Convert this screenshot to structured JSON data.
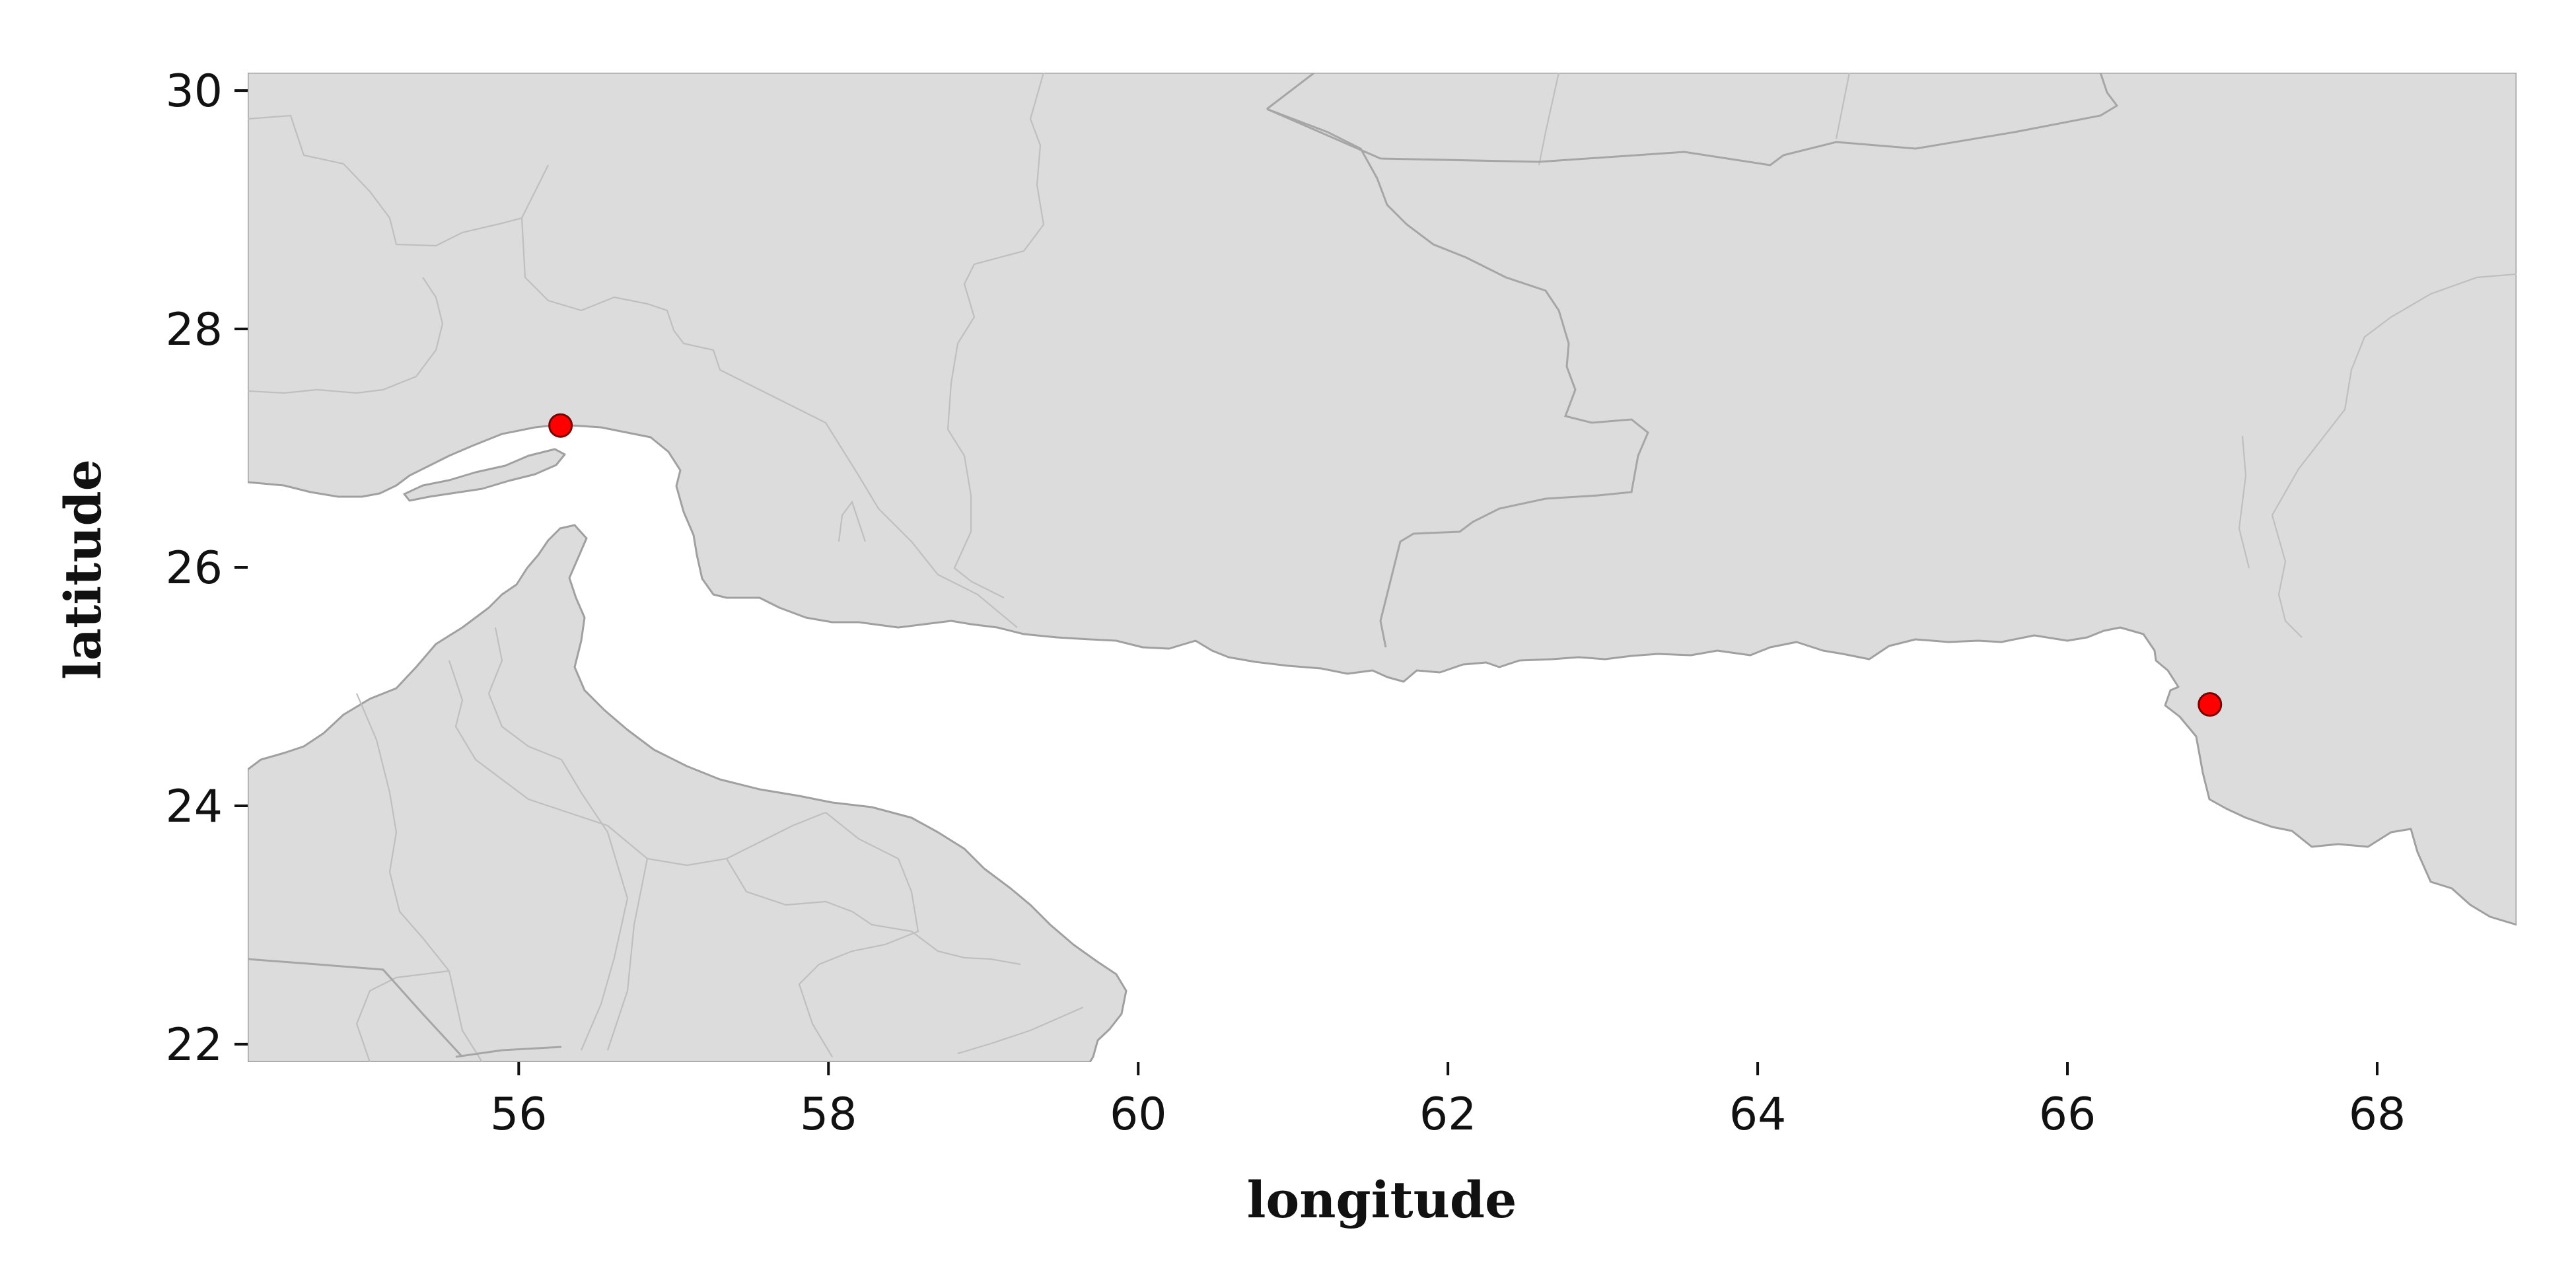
{
  "chart_data": {
    "type": "scatter",
    "title": "",
    "xlabel": "longitude",
    "ylabel": "latitude",
    "xlim": [
      54.25,
      68.9
    ],
    "ylim": [
      21.85,
      30.15
    ],
    "x_ticks": [
      56,
      58,
      60,
      62,
      64,
      66,
      68
    ],
    "y_ticks": [
      22,
      24,
      26,
      28,
      30
    ],
    "grid": false,
    "series": [
      {
        "points": [
          {
            "x": 56.27,
            "y": 27.19
          },
          {
            "x": 66.92,
            "y": 24.85
          }
        ]
      }
    ],
    "colors": {
      "land": "#dcdcdc",
      "coastline": "#a0a0a0",
      "point": "#ff0000",
      "background": "#ffffff"
    }
  }
}
